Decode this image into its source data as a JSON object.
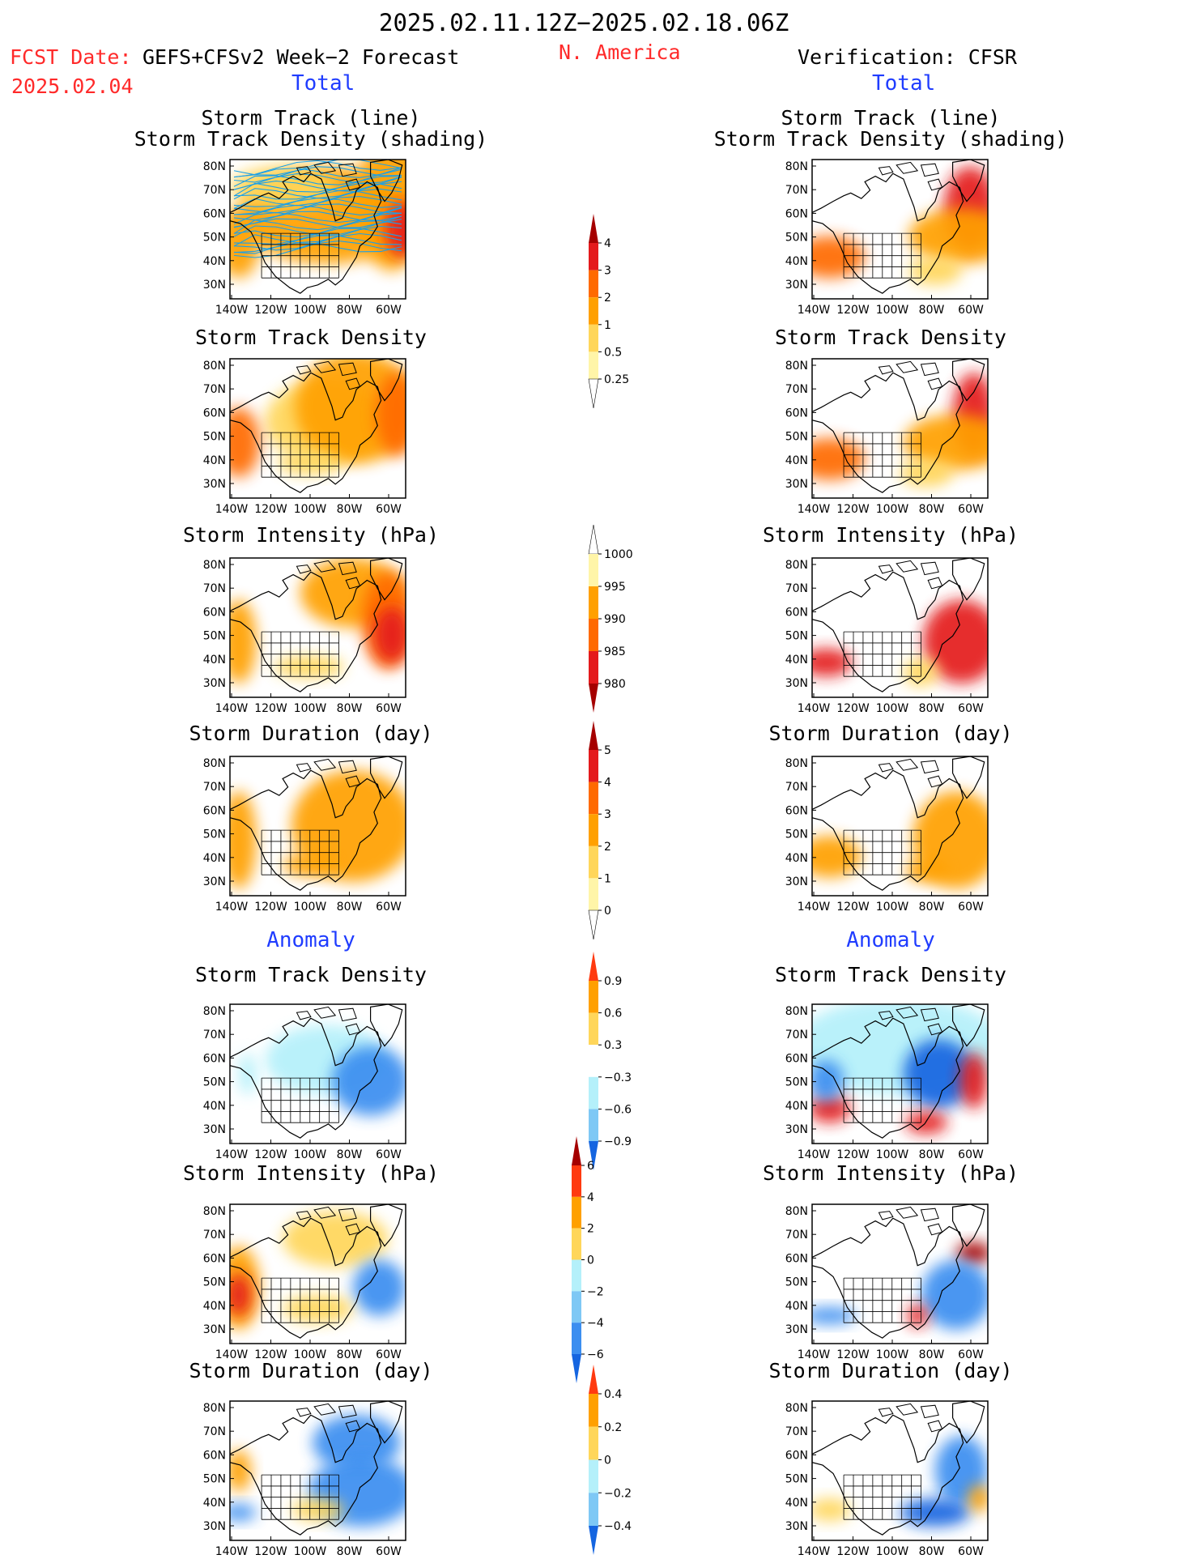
{
  "header": {
    "date_range": "2025.02.11.12Z−2025.02.18.06Z",
    "fcst_label": "FCST Date:",
    "fcst_date": "2025.02.04",
    "forecast_name": "GEFS+CFSv2 Week−2 Forecast",
    "region": "N. America",
    "verification": "Verification: CFSR"
  },
  "sections": {
    "total_left": "Total",
    "total_right": "Total",
    "anomaly_left": "Anomaly",
    "anomaly_right": "Anomaly"
  },
  "panel_titles": {
    "track_line": "Storm Track (line)",
    "track_shading": "Storm Track Density (shading)",
    "density": "Storm Track Density",
    "intensity": "Storm Intensity (hPa)",
    "duration": "Storm Duration (day)"
  },
  "axes": {
    "lat_ticks": [
      "30N",
      "40N",
      "50N",
      "60N",
      "70N",
      "80N"
    ],
    "lon_ticks": [
      "140W",
      "120W",
      "100W",
      "80W",
      "60W"
    ]
  },
  "colors": {
    "lightyellow": "#fff5a8",
    "yellow": "#ffd65a",
    "orange": "#ffa000",
    "darkorange": "#ff6a00",
    "red": "#e41a1c",
    "darkred": "#a50000",
    "lightblue": "#b4f0fa",
    "skyblue": "#7ec8f5",
    "blue": "#3b8ef0",
    "darkblue": "#1565e0",
    "track_line": "#1aa0e8"
  },
  "chart_data": [
    {
      "type": "heatmap",
      "panel": "forecast-total-track",
      "title": "Storm Track (line) / Storm Track Density (shading)",
      "colorbar": {
        "levels": [
          0.25,
          0.5,
          1,
          2,
          3,
          4
        ]
      }
    },
    {
      "type": "heatmap",
      "panel": "forecast-total-density",
      "title": "Storm Track Density",
      "colorbar": {
        "levels": [
          0.25,
          0.5,
          1,
          2,
          3,
          4
        ]
      }
    },
    {
      "type": "heatmap",
      "panel": "forecast-total-intensity",
      "title": "Storm Intensity (hPa)",
      "colorbar": {
        "levels": [
          1000,
          995,
          990,
          985,
          980
        ]
      }
    },
    {
      "type": "heatmap",
      "panel": "forecast-total-duration",
      "title": "Storm Duration (day)",
      "colorbar": {
        "levels": [
          0,
          1,
          2,
          3,
          4,
          5
        ]
      }
    },
    {
      "type": "heatmap",
      "panel": "forecast-anomaly-density",
      "title": "Storm Track Density",
      "colorbar": {
        "levels": [
          -0.9,
          -0.6,
          -0.3,
          0.3,
          0.6,
          0.9
        ]
      }
    },
    {
      "type": "heatmap",
      "panel": "forecast-anomaly-intensity",
      "title": "Storm Intensity (hPa)",
      "colorbar": {
        "levels": [
          -6,
          -4,
          -2,
          0,
          2,
          4,
          6
        ]
      }
    },
    {
      "type": "heatmap",
      "panel": "forecast-anomaly-duration",
      "title": "Storm Duration (day)",
      "colorbar": {
        "levels": [
          -0.4,
          -0.2,
          0,
          0.2,
          0.4
        ]
      }
    }
  ],
  "colorbars": [
    {
      "id": "cb-density",
      "labels": [
        "4",
        "3",
        "2",
        "1",
        "0.5",
        "0.25"
      ],
      "colors": [
        "#e41a1c",
        "#ff6a00",
        "#ffa000",
        "#ffd65a",
        "#fff5a8"
      ],
      "upper": "#a50000",
      "lower": "#ffffff"
    },
    {
      "id": "cb-intensity",
      "labels": [
        "1000",
        "995",
        "990",
        "985",
        "980"
      ],
      "colors": [
        "#fff5a8",
        "#ffa000",
        "#ff6a00",
        "#e41a1c"
      ],
      "upper": "#ffffff",
      "lower": "#a50000"
    },
    {
      "id": "cb-duration",
      "labels": [
        "5",
        "4",
        "3",
        "2",
        "1",
        "0"
      ],
      "colors": [
        "#e41a1c",
        "#ff6a00",
        "#ffa000",
        "#ffd65a",
        "#fff5a8"
      ],
      "upper": "#a50000",
      "lower": "#ffffff"
    },
    {
      "id": "cb-anom-density",
      "labels": [
        "0.9",
        "0.6",
        "0.3",
        "−0.3",
        "−0.6",
        "−0.9"
      ],
      "colors": [
        "#ffa000",
        "#ffd65a",
        "#ffffff",
        "#b4f0fa",
        "#7ec8f5"
      ],
      "upper": "#ff3a10",
      "lower": "#1565e0"
    },
    {
      "id": "cb-anom-intensity",
      "labels": [
        "6",
        "4",
        "2",
        "0",
        "−2",
        "−4",
        "−6"
      ],
      "colors": [
        "#ff3a10",
        "#ffa000",
        "#ffd65a",
        "#b4f0fa",
        "#7ec8f5",
        "#3b8ef0"
      ],
      "upper": "#a50000",
      "lower": "#1565e0"
    },
    {
      "id": "cb-anom-duration",
      "labels": [
        "0.4",
        "0.2",
        "0",
        "−0.2",
        "−0.4"
      ],
      "colors": [
        "#ffa000",
        "#ffd65a",
        "#b4f0fa",
        "#7ec8f5"
      ],
      "upper": "#ff3a10",
      "lower": "#1565e0"
    }
  ],
  "panels": [
    {
      "id": "f-track",
      "blobs": [
        [
          "orange",
          0.55,
          0.4,
          0.5,
          0.35
        ],
        [
          "orange",
          0.92,
          0.3,
          0.2,
          0.5
        ],
        [
          "red",
          0.98,
          0.5,
          0.1,
          0.2
        ],
        [
          "orange",
          0.05,
          0.6,
          0.12,
          0.25
        ],
        [
          "yellow",
          0.3,
          0.2,
          0.3,
          0.15
        ]
      ],
      "tracks": true
    },
    {
      "id": "f-density",
      "blobs": [
        [
          "yellow",
          0.55,
          0.45,
          0.35,
          0.3
        ],
        [
          "orange",
          0.72,
          0.35,
          0.35,
          0.4
        ],
        [
          "darkorange",
          0.95,
          0.4,
          0.12,
          0.3
        ],
        [
          "darkorange",
          0.05,
          0.6,
          0.12,
          0.25
        ],
        [
          "yellow",
          0.45,
          0.75,
          0.18,
          0.08
        ]
      ]
    },
    {
      "id": "f-intensity",
      "blobs": [
        [
          "orange",
          0.7,
          0.25,
          0.3,
          0.25
        ],
        [
          "darkorange",
          0.9,
          0.45,
          0.15,
          0.35
        ],
        [
          "red",
          0.92,
          0.55,
          0.1,
          0.2
        ],
        [
          "orange",
          0.05,
          0.6,
          0.1,
          0.3
        ],
        [
          "yellow",
          0.45,
          0.78,
          0.2,
          0.08
        ]
      ]
    },
    {
      "id": "f-duration",
      "blobs": [
        [
          "orange",
          0.7,
          0.5,
          0.35,
          0.4
        ],
        [
          "orange",
          0.05,
          0.6,
          0.1,
          0.35
        ],
        [
          "orange",
          0.45,
          0.78,
          0.15,
          0.08
        ]
      ]
    },
    {
      "id": "fa-density",
      "blobs": [
        [
          "lightblue",
          0.55,
          0.4,
          0.35,
          0.25
        ],
        [
          "blue",
          0.8,
          0.55,
          0.22,
          0.25
        ],
        [
          "lightblue",
          0.1,
          0.5,
          0.05,
          0.15
        ]
      ]
    },
    {
      "id": "fa-intensity",
      "blobs": [
        [
          "yellow",
          0.6,
          0.25,
          0.3,
          0.2
        ],
        [
          "orange",
          0.05,
          0.6,
          0.12,
          0.3
        ],
        [
          "red",
          0.05,
          0.65,
          0.07,
          0.15
        ],
        [
          "blue",
          0.85,
          0.6,
          0.15,
          0.2
        ],
        [
          "yellow",
          0.5,
          0.75,
          0.2,
          0.1
        ]
      ]
    },
    {
      "id": "fa-duration",
      "blobs": [
        [
          "blue",
          0.72,
          0.3,
          0.25,
          0.2
        ],
        [
          "blue",
          0.75,
          0.65,
          0.3,
          0.25
        ],
        [
          "yellow",
          0.5,
          0.78,
          0.15,
          0.08
        ],
        [
          "orange",
          0.05,
          0.5,
          0.07,
          0.15
        ],
        [
          "blue",
          0.05,
          0.8,
          0.1,
          0.06
        ]
      ]
    },
    {
      "id": "v-track",
      "blobs": [
        [
          "darkorange",
          0.1,
          0.7,
          0.2,
          0.15
        ],
        [
          "red",
          0.9,
          0.35,
          0.15,
          0.3
        ],
        [
          "orange",
          0.85,
          0.55,
          0.3,
          0.2
        ],
        [
          "yellow",
          0.7,
          0.8,
          0.15,
          0.1
        ]
      ],
      "tracks": false
    },
    {
      "id": "v-density",
      "blobs": [
        [
          "darkorange",
          0.1,
          0.72,
          0.2,
          0.15
        ],
        [
          "red",
          0.92,
          0.4,
          0.12,
          0.3
        ],
        [
          "orange",
          0.82,
          0.6,
          0.3,
          0.2
        ],
        [
          "yellow",
          0.65,
          0.82,
          0.15,
          0.1
        ]
      ]
    },
    {
      "id": "v-intensity",
      "blobs": [
        [
          "red",
          0.85,
          0.6,
          0.22,
          0.3
        ],
        [
          "red",
          0.08,
          0.75,
          0.15,
          0.1
        ],
        [
          "yellow",
          0.62,
          0.82,
          0.1,
          0.1
        ]
      ]
    },
    {
      "id": "v-duration",
      "blobs": [
        [
          "orange",
          0.82,
          0.6,
          0.25,
          0.35
        ],
        [
          "orange",
          0.1,
          0.72,
          0.18,
          0.15
        ],
        [
          "orange",
          0.65,
          0.82,
          0.12,
          0.08
        ]
      ]
    },
    {
      "id": "va-density",
      "blobs": [
        [
          "lightblue",
          0.5,
          0.3,
          0.6,
          0.35
        ],
        [
          "darkblue",
          0.72,
          0.5,
          0.2,
          0.25
        ],
        [
          "red",
          0.92,
          0.55,
          0.08,
          0.2
        ],
        [
          "red",
          0.1,
          0.75,
          0.12,
          0.1
        ],
        [
          "red",
          0.65,
          0.85,
          0.12,
          0.08
        ],
        [
          "blue",
          0.08,
          0.55,
          0.1,
          0.15
        ]
      ]
    },
    {
      "id": "va-intensity",
      "blobs": [
        [
          "darkred",
          0.92,
          0.35,
          0.1,
          0.08
        ],
        [
          "blue",
          0.82,
          0.65,
          0.2,
          0.25
        ],
        [
          "blue",
          0.1,
          0.8,
          0.15,
          0.06
        ],
        [
          "red",
          0.6,
          0.8,
          0.06,
          0.08
        ]
      ]
    },
    {
      "id": "va-duration",
      "blobs": [
        [
          "blue",
          0.85,
          0.5,
          0.15,
          0.25
        ],
        [
          "darkblue",
          0.7,
          0.8,
          0.2,
          0.1
        ],
        [
          "yellow",
          0.1,
          0.78,
          0.12,
          0.08
        ],
        [
          "orange",
          0.95,
          0.7,
          0.06,
          0.1
        ]
      ]
    }
  ]
}
